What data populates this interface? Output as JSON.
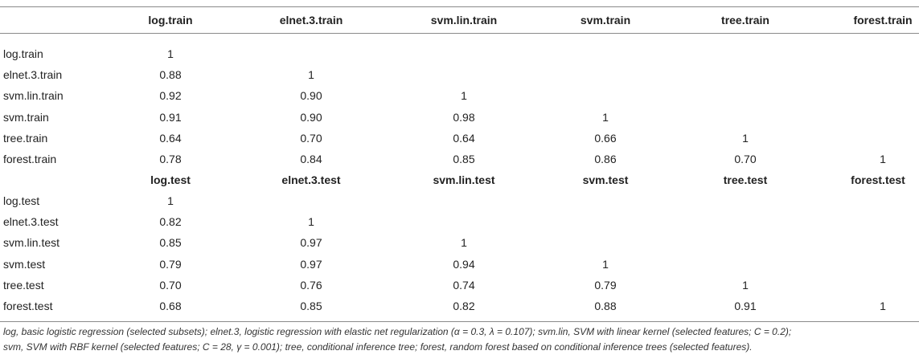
{
  "chart_data": {
    "type": "table",
    "blocks": [
      {
        "columns": [
          "log.train",
          "elnet.3.train",
          "svm.lin.train",
          "svm.train",
          "tree.train",
          "forest.train"
        ],
        "rows": [
          {
            "label": "log.train",
            "values": [
              "1",
              "",
              "",
              "",
              "",
              ""
            ]
          },
          {
            "label": "elnet.3.train",
            "values": [
              "0.88",
              "1",
              "",
              "",
              "",
              ""
            ]
          },
          {
            "label": "svm.lin.train",
            "values": [
              "0.92",
              "0.90",
              "1",
              "",
              "",
              ""
            ]
          },
          {
            "label": "svm.train",
            "values": [
              "0.91",
              "0.90",
              "0.98",
              "1",
              "",
              ""
            ]
          },
          {
            "label": "tree.train",
            "values": [
              "0.64",
              "0.70",
              "0.64",
              "0.66",
              "1",
              ""
            ]
          },
          {
            "label": "forest.train",
            "values": [
              "0.78",
              "0.84",
              "0.85",
              "0.86",
              "0.70",
              "1"
            ]
          }
        ]
      },
      {
        "columns": [
          "log.test",
          "elnet.3.test",
          "svm.lin.test",
          "svm.test",
          "tree.test",
          "forest.test"
        ],
        "rows": [
          {
            "label": "log.test",
            "values": [
              "1",
              "",
              "",
              "",
              "",
              ""
            ]
          },
          {
            "label": "elnet.3.test",
            "values": [
              "0.82",
              "1",
              "",
              "",
              "",
              ""
            ]
          },
          {
            "label": "svm.lin.test",
            "values": [
              "0.85",
              "0.97",
              "1",
              "",
              "",
              ""
            ]
          },
          {
            "label": "svm.test",
            "values": [
              "0.79",
              "0.97",
              "0.94",
              "1",
              "",
              ""
            ]
          },
          {
            "label": "tree.test",
            "values": [
              "0.70",
              "0.76",
              "0.74",
              "0.79",
              "1",
              ""
            ]
          },
          {
            "label": "forest.test",
            "values": [
              "0.68",
              "0.85",
              "0.82",
              "0.88",
              "0.91",
              "1"
            ]
          }
        ]
      }
    ],
    "footnote": [
      "log, basic logistic regression (selected subsets); elnet.3, logistic regression with elastic net regularization (α = 0.3, λ = 0.107); svm.lin, SVM with linear kernel (selected features; C = 0.2);",
      "svm, SVM with RBF kernel (selected features; C = 28, γ = 0.001); tree, conditional inference tree; forest, random forest based on conditional inference trees (selected features)."
    ]
  }
}
